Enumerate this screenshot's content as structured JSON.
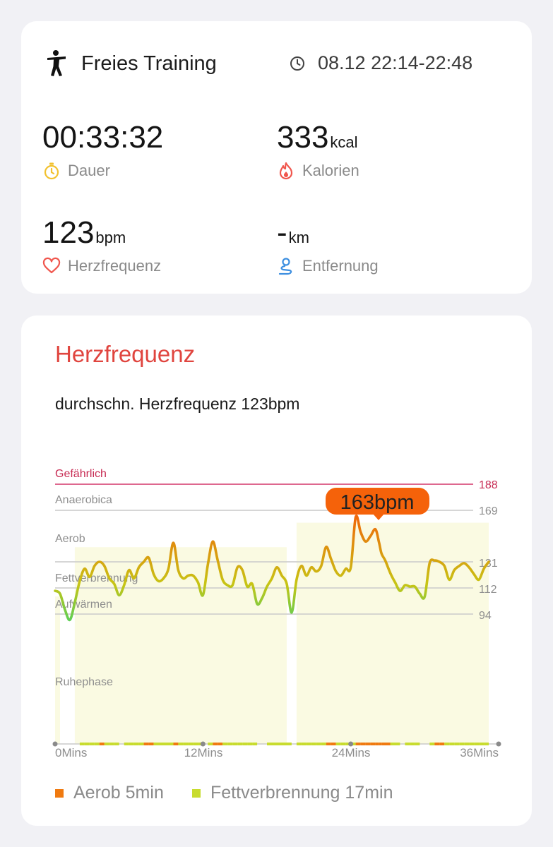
{
  "summary": {
    "activity_title": "Freies Training",
    "activity_icon": "person-exercise-icon",
    "time_range": "08.12 22:14-22:48",
    "time_icon": "clock-icon",
    "duration": {
      "value": "00:33:32",
      "unit": "",
      "label": "Dauer",
      "icon": "stopwatch-icon",
      "color": "#f2c12e"
    },
    "calories": {
      "value": "333",
      "unit": "kcal",
      "label": "Kalorien",
      "icon": "flame-icon",
      "color": "#f0564d"
    },
    "heart_rate": {
      "value": "123",
      "unit": "bpm",
      "label": "Herzfrequenz",
      "icon": "heart-icon",
      "color": "#f0564d"
    },
    "distance": {
      "value": "-",
      "unit": "km",
      "label": "Entfernung",
      "icon": "route-pin-icon",
      "color": "#3d8fe0"
    }
  },
  "hr_section": {
    "title": "Herzfrequenz",
    "average_text": "durchschn. Herzfrequenz 123bpm",
    "title_color": "#e0453f"
  },
  "chart_data": {
    "type": "line",
    "xlabel": "",
    "ylabel": "",
    "x_unit": "min",
    "x_ticks": [
      "0Mins",
      "12Mins",
      "24Mins",
      "36Mins"
    ],
    "x_range": [
      0,
      36
    ],
    "zones": [
      {
        "name": "Gefährlich",
        "threshold": 188
      },
      {
        "name": "Anaerobica",
        "threshold": 169
      },
      {
        "name": "Aerob",
        "threshold": 131
      },
      {
        "name": "Fettverbrennung",
        "threshold": 112
      },
      {
        "name": "Aufwärmen",
        "threshold": 94
      },
      {
        "name": "Ruhephase",
        "threshold": null
      }
    ],
    "y_ticks": [
      "188",
      "169",
      "131",
      "112",
      "94"
    ],
    "peak_label": "163bpm",
    "peak": {
      "x": 26.5,
      "y": 163
    },
    "series": [
      {
        "x": [
          0,
          0.4,
          0.8,
          1.2,
          1.6,
          2.0,
          2.4,
          2.8,
          3.2,
          3.6,
          4.0,
          4.4,
          4.8,
          5.2,
          5.6,
          6.0,
          6.4,
          6.8,
          7.2,
          7.6,
          8.0,
          8.4,
          8.8,
          9.2,
          9.6,
          10.0,
          10.4,
          10.8,
          11.2,
          11.6,
          12.0,
          12.4,
          12.8,
          13.2,
          13.6,
          14.0,
          14.4,
          14.8,
          15.2,
          15.6,
          16.0,
          16.4,
          16.8,
          17.2,
          17.6,
          18.0,
          18.4,
          18.8,
          19.2,
          19.6,
          20.0,
          20.4,
          20.8,
          21.2,
          21.6,
          22.0,
          22.4,
          22.8,
          23.2,
          23.6,
          24.0,
          24.4,
          24.8,
          25.2,
          25.6,
          26.0,
          26.3,
          26.5,
          26.8,
          27.2,
          27.6,
          28.0,
          28.4,
          28.8,
          29.2,
          29.6,
          30.0,
          30.4,
          30.8,
          31.2,
          31.6,
          32.0,
          32.4,
          32.8,
          33.2,
          33.6,
          34.0,
          34.4,
          34.8,
          35.2
        ],
        "y": [
          110,
          108,
          97,
          90,
          102,
          117,
          126,
          120,
          128,
          131,
          128,
          119,
          115,
          107,
          114,
          125,
          119,
          127,
          131,
          134,
          122,
          117,
          119,
          126,
          145,
          125,
          119,
          121,
          121,
          116,
          107,
          129,
          146,
          132,
          118,
          114,
          114,
          127,
          125,
          113,
          115,
          101,
          105,
          113,
          119,
          127,
          121,
          115,
          95,
          118,
          128,
          121,
          127,
          124,
          128,
          142,
          133,
          124,
          121,
          126,
          127,
          164,
          153,
          146,
          150,
          155,
          145,
          137,
          132,
          123,
          116,
          110,
          114,
          113,
          113,
          108,
          106,
          130,
          132,
          131,
          128,
          118,
          125,
          128,
          130,
          127,
          122,
          118,
          126,
          131
        ],
        "color_scale": {
          "low": "#3fd26a",
          "mid": "#c8c414",
          "high": "#f2620a"
        }
      }
    ],
    "zone_time_bars": [
      {
        "name": "Aerob",
        "minutes": 5,
        "color": "#f07a10"
      },
      {
        "name": "Fettverbrennung",
        "minutes": 17,
        "color": "#c8dc2e"
      }
    ]
  },
  "legend": {
    "aerob_text": "Aerob 5min",
    "aerob_color": "#f07a10",
    "fett_text": "Fettverbrennung 17min",
    "fett_color": "#c8dc2e"
  }
}
